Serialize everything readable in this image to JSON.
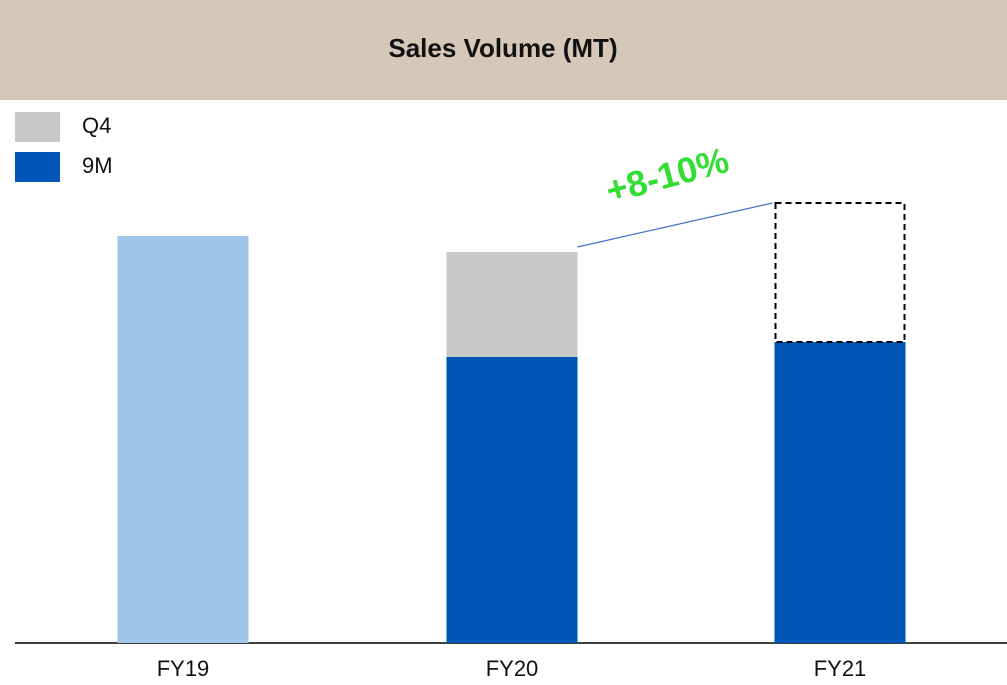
{
  "chart_data": {
    "type": "bar",
    "title": "Sales Volume (MT)",
    "categories": [
      "FY19",
      "FY20",
      "FY21"
    ],
    "series": [
      {
        "name": "9M",
        "color": "#0057b8",
        "values": [
          null,
          286,
          301
        ]
      },
      {
        "name": "Q4",
        "color": "#c8c8c8",
        "values": [
          null,
          105,
          139
        ],
        "dashed": [
          false,
          false,
          true
        ]
      }
    ],
    "full_year": {
      "color": "#9fc5e8",
      "values": [
        407,
        null,
        null
      ]
    },
    "annotation": "+8-10%",
    "annotation_color": "#33dd33",
    "ylim": [
      0,
      450
    ],
    "stacked": true
  }
}
